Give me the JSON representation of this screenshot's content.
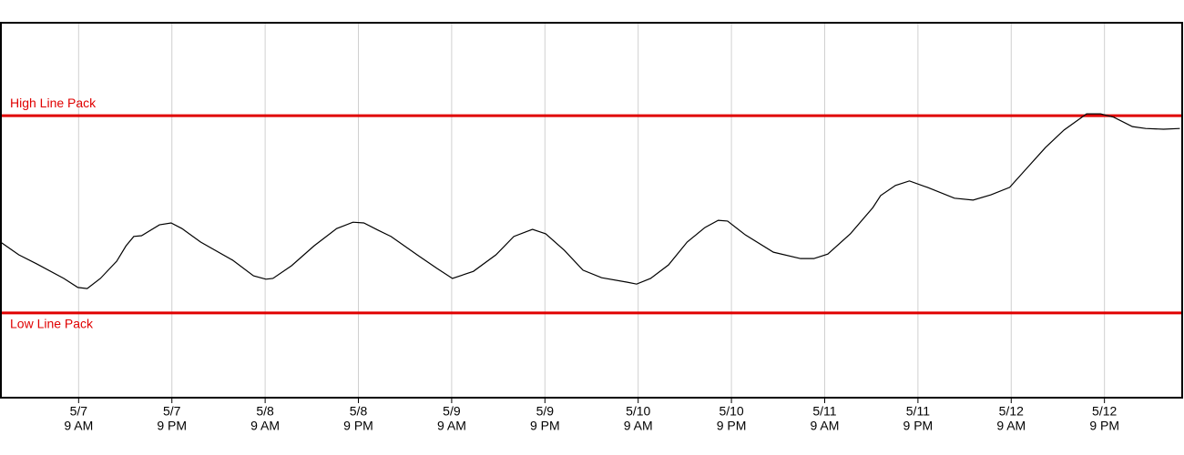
{
  "chart_data": {
    "type": "line",
    "x": [
      -9.9,
      -7.7,
      -5.4,
      -1.9,
      -0.1,
      1.1,
      2.8,
      4.9,
      6.1,
      7.1,
      8.1,
      10.4,
      11.9,
      13.3,
      15.7,
      19.8,
      22.5,
      24.1,
      25.0,
      27.4,
      30.3,
      33.2,
      35.3,
      36.7,
      38.5,
      40.2,
      43.7,
      46.1,
      48.1,
      50.8,
      53.7,
      56.0,
      58.4,
      60.1,
      62.5,
      64.9,
      67.3,
      70.6,
      71.8,
      73.6,
      75.9,
      78.3,
      80.6,
      82.3,
      83.5,
      85.8,
      89.4,
      92.9,
      94.6,
      96.4,
      99.3,
      102.2,
      103.2,
      105.1,
      106.9,
      109.2,
      112.7,
      115.1,
      117.4,
      119.8,
      122.1,
      124.4,
      126.8,
      129.7,
      131.5,
      133.2,
      135.6,
      137.3,
      139.6,
      141.7
    ],
    "series": [
      {
        "color": "#000000",
        "values": [
          41.3,
          38.1,
          35.7,
          31.8,
          29.4,
          29.1,
          31.8,
          36.4,
          40.5,
          43.0,
          43.2,
          46.1,
          46.6,
          45.1,
          41.5,
          36.7,
          32.5,
          31.6,
          31.8,
          35.2,
          40.5,
          45.1,
          46.8,
          46.6,
          44.7,
          43.0,
          37.9,
          34.5,
          31.8,
          33.7,
          38.1,
          43.0,
          44.9,
          43.7,
          39.3,
          34.0,
          32.0,
          30.8,
          30.3,
          31.8,
          35.4,
          41.5,
          45.4,
          47.3,
          47.1,
          43.4,
          38.8,
          37.1,
          37.1,
          38.3,
          43.7,
          50.7,
          53.9,
          56.6,
          57.8,
          56.1,
          53.2,
          52.7,
          54.1,
          56.1,
          61.4,
          66.7,
          71.4,
          75.7,
          75.7,
          74.8,
          72.3,
          71.8,
          71.6,
          71.8
        ]
      }
    ],
    "reference_lines": [
      {
        "label": "High Line Pack",
        "value": 75.2,
        "color": "#e00000"
      },
      {
        "label": "Low Line Pack",
        "value": 22.6,
        "color": "#e00000"
      }
    ],
    "xlim": [
      -10,
      142
    ],
    "ylim": [
      0,
      100
    ],
    "xticks": [
      {
        "value": 0,
        "label": [
          "5/7",
          "9 AM"
        ]
      },
      {
        "value": 12,
        "label": [
          "5/7",
          "9 PM"
        ]
      },
      {
        "value": 24,
        "label": [
          "5/8",
          "9 AM"
        ]
      },
      {
        "value": 36,
        "label": [
          "5/8",
          "9 PM"
        ]
      },
      {
        "value": 48,
        "label": [
          "5/9",
          "9 AM"
        ]
      },
      {
        "value": 60,
        "label": [
          "5/9",
          "9 PM"
        ]
      },
      {
        "value": 72,
        "label": [
          "5/10",
          "9 AM"
        ]
      },
      {
        "value": 84,
        "label": [
          "5/10",
          "9 PM"
        ]
      },
      {
        "value": 96,
        "label": [
          "5/11",
          "9 AM"
        ]
      },
      {
        "value": 108,
        "label": [
          "5/11",
          "9 PM"
        ]
      },
      {
        "value": 120,
        "label": [
          "5/12",
          "9 AM"
        ]
      },
      {
        "value": 132,
        "label": [
          "5/12",
          "9 PM"
        ]
      }
    ],
    "grid": true
  }
}
